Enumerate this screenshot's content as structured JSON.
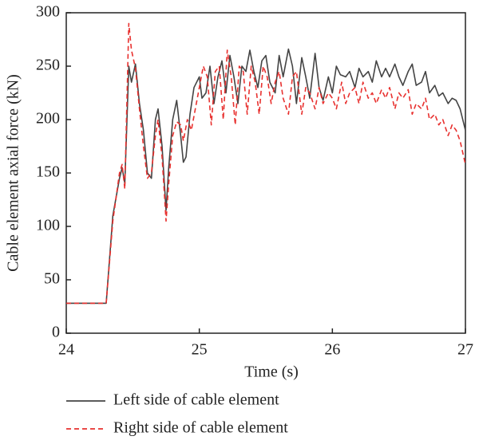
{
  "chart_data": {
    "type": "line",
    "xlabel": "Time (s)",
    "ylabel": "Cable element axial force (kN)",
    "xlim": [
      24,
      27
    ],
    "xticks": [
      24,
      25,
      26,
      27
    ],
    "ylim": [
      0,
      300
    ],
    "yticks": [
      0,
      50,
      100,
      150,
      200,
      250,
      300
    ],
    "legend": "bottom",
    "series": [
      {
        "name": "Left side of cable element",
        "color": "#444444",
        "dash": "solid",
        "x": [
          24.0,
          24.3,
          24.35,
          24.4,
          24.42,
          24.44,
          24.47,
          24.49,
          24.52,
          24.55,
          24.58,
          24.61,
          24.64,
          24.67,
          24.69,
          24.72,
          24.75,
          24.77,
          24.8,
          24.83,
          24.86,
          24.88,
          24.9,
          24.93,
          24.96,
          25.0,
          25.02,
          25.05,
          25.08,
          25.11,
          25.14,
          25.17,
          25.2,
          25.23,
          25.26,
          25.29,
          25.32,
          25.35,
          25.38,
          25.41,
          25.44,
          25.47,
          25.5,
          25.53,
          25.57,
          25.6,
          25.63,
          25.67,
          25.7,
          25.73,
          25.77,
          25.8,
          25.83,
          25.87,
          25.9,
          25.93,
          25.97,
          26.0,
          26.03,
          26.06,
          26.1,
          26.13,
          26.17,
          26.2,
          26.23,
          26.27,
          26.3,
          26.33,
          26.37,
          26.4,
          26.43,
          26.47,
          26.5,
          26.53,
          26.57,
          26.6,
          26.63,
          26.67,
          26.7,
          26.73,
          26.77,
          26.8,
          26.83,
          26.87,
          26.9,
          26.93,
          26.96,
          27.0
        ],
        "values": [
          28,
          28,
          110,
          145,
          155,
          140,
          250,
          235,
          252,
          215,
          190,
          150,
          145,
          200,
          210,
          175,
          115,
          155,
          200,
          218,
          185,
          160,
          165,
          205,
          230,
          240,
          220,
          225,
          250,
          215,
          240,
          255,
          225,
          260,
          240,
          215,
          250,
          245,
          265,
          245,
          230,
          255,
          260,
          235,
          225,
          260,
          240,
          266,
          250,
          215,
          258,
          240,
          220,
          262,
          230,
          218,
          240,
          225,
          250,
          242,
          240,
          245,
          230,
          248,
          240,
          245,
          235,
          255,
          240,
          248,
          240,
          252,
          240,
          232,
          245,
          252,
          232,
          235,
          245,
          225,
          232,
          222,
          225,
          215,
          220,
          218,
          210,
          190
        ]
      },
      {
        "name": "Right side of cable element",
        "color": "#e8312f",
        "dash": "dashed",
        "x": [
          24.0,
          24.3,
          24.35,
          24.4,
          24.42,
          24.44,
          24.47,
          24.49,
          24.52,
          24.55,
          24.58,
          24.61,
          24.64,
          24.67,
          24.69,
          24.72,
          24.75,
          24.77,
          24.8,
          24.83,
          24.86,
          24.88,
          24.91,
          24.94,
          24.97,
          25.0,
          25.03,
          25.06,
          25.09,
          25.12,
          25.15,
          25.18,
          25.21,
          25.24,
          25.27,
          25.3,
          25.33,
          25.36,
          25.39,
          25.42,
          25.45,
          25.48,
          25.51,
          25.54,
          25.57,
          25.6,
          25.63,
          25.67,
          25.7,
          25.73,
          25.77,
          25.8,
          25.83,
          25.87,
          25.9,
          25.93,
          25.97,
          26.0,
          26.03,
          26.07,
          26.1,
          26.13,
          26.17,
          26.2,
          26.23,
          26.27,
          26.3,
          26.33,
          26.37,
          26.4,
          26.43,
          26.47,
          26.5,
          26.53,
          26.57,
          26.6,
          26.63,
          26.67,
          26.7,
          26.73,
          26.77,
          26.8,
          26.83,
          26.87,
          26.9,
          26.93,
          26.96,
          27.0
        ],
        "values": [
          28,
          28,
          105,
          150,
          158,
          135,
          290,
          265,
          248,
          210,
          175,
          145,
          150,
          185,
          200,
          165,
          105,
          140,
          185,
          198,
          195,
          180,
          200,
          190,
          210,
          230,
          250,
          240,
          195,
          245,
          250,
          200,
          265,
          240,
          195,
          250,
          245,
          205,
          250,
          235,
          205,
          250,
          240,
          215,
          235,
          245,
          220,
          205,
          240,
          245,
          205,
          230,
          225,
          210,
          230,
          215,
          225,
          220,
          210,
          235,
          215,
          225,
          230,
          215,
          235,
          220,
          225,
          215,
          228,
          220,
          230,
          210,
          225,
          220,
          228,
          205,
          215,
          210,
          220,
          200,
          205,
          195,
          200,
          185,
          195,
          190,
          180,
          158
        ]
      }
    ]
  }
}
